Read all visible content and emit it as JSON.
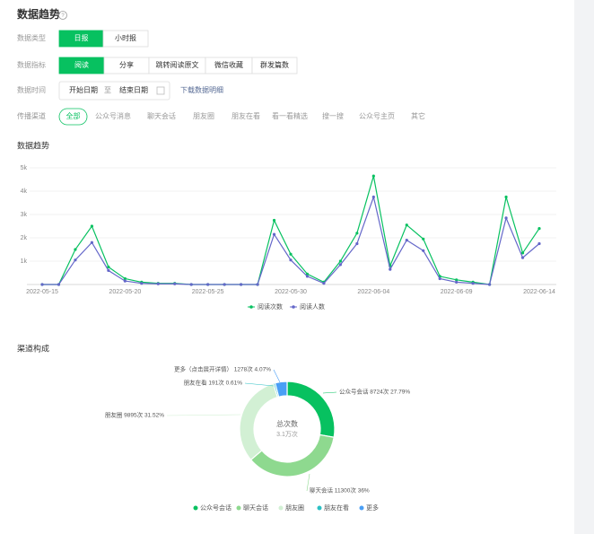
{
  "header": {
    "title": "数据趋势"
  },
  "filters": {
    "data_type": {
      "label": "数据类型",
      "options": [
        "日报",
        "小时报"
      ]
    },
    "metric": {
      "label": "数据指标",
      "options": [
        "阅读",
        "分享",
        "跳转阅读原文",
        "微信收藏",
        "群发篇数"
      ]
    },
    "time": {
      "label": "数据时间",
      "start": "开始日期",
      "separator": "至",
      "end": "结束日期",
      "download": "下载数据明细"
    },
    "channel": {
      "label": "传播渠道",
      "options": [
        "全部",
        "公众号消息",
        "聊天会话",
        "朋友圈",
        "朋友在看",
        "看一看精选",
        "搜一搜",
        "公众号主页",
        "其它"
      ]
    }
  },
  "chart_data": [
    {
      "type": "line",
      "title": "数据趋势",
      "categories": [
        "2022-05-15",
        null,
        null,
        null,
        null,
        "2022-05-20",
        null,
        null,
        null,
        null,
        "2022-05-25",
        null,
        null,
        null,
        null,
        "2022-05-30",
        null,
        null,
        null,
        null,
        "2022-06-04",
        null,
        null,
        null,
        null,
        "2022-06-09",
        null,
        null,
        null,
        null,
        "2022-06-14"
      ],
      "series": [
        {
          "name": "阅读次数",
          "color": "#07c160",
          "values": [
            0,
            0,
            1500,
            2500,
            750,
            250,
            100,
            50,
            50,
            0,
            0,
            0,
            0,
            0,
            2750,
            1300,
            450,
            100,
            1000,
            2200,
            4650,
            800,
            2550,
            1950,
            350,
            200,
            100,
            0,
            3750,
            1350,
            2400
          ]
        },
        {
          "name": "阅读人数",
          "color": "#6467c9",
          "values": [
            0,
            0,
            1050,
            1800,
            600,
            150,
            50,
            30,
            30,
            0,
            0,
            0,
            0,
            0,
            2150,
            1050,
            350,
            50,
            850,
            1750,
            3750,
            650,
            1900,
            1450,
            250,
            100,
            50,
            0,
            2850,
            1150,
            1750
          ]
        }
      ],
      "ylim": [
        0,
        5000
      ],
      "yticks": [
        {
          "value": 1000,
          "label": "1k"
        },
        {
          "value": 2000,
          "label": "2k"
        },
        {
          "value": 3000,
          "label": "3k"
        },
        {
          "value": 4000,
          "label": "4k"
        },
        {
          "value": 5000,
          "label": "5k"
        }
      ],
      "grid": true
    },
    {
      "type": "pie",
      "title": "渠道构成",
      "categories": [
        "公众号会话",
        "聊天会话",
        "朋友圈",
        "朋友在看",
        "更多"
      ],
      "values": [
        8724,
        11300,
        9895,
        191,
        1278
      ],
      "value_labels": [
        "公众号会话 8724次 27.79%",
        "聊天会话 11300次 36%",
        "朋友圈 9895次 31.52%",
        "朋友在看 191次 0.61%",
        "更多（点击展开详情） 1278次 4.07%"
      ],
      "colors": [
        "#07c160",
        "#8ed98f",
        "#d2f0d4",
        "#2bc0c4",
        "#4a9ff5"
      ],
      "center_label": "总次数",
      "center_value": "3.1万次"
    }
  ]
}
